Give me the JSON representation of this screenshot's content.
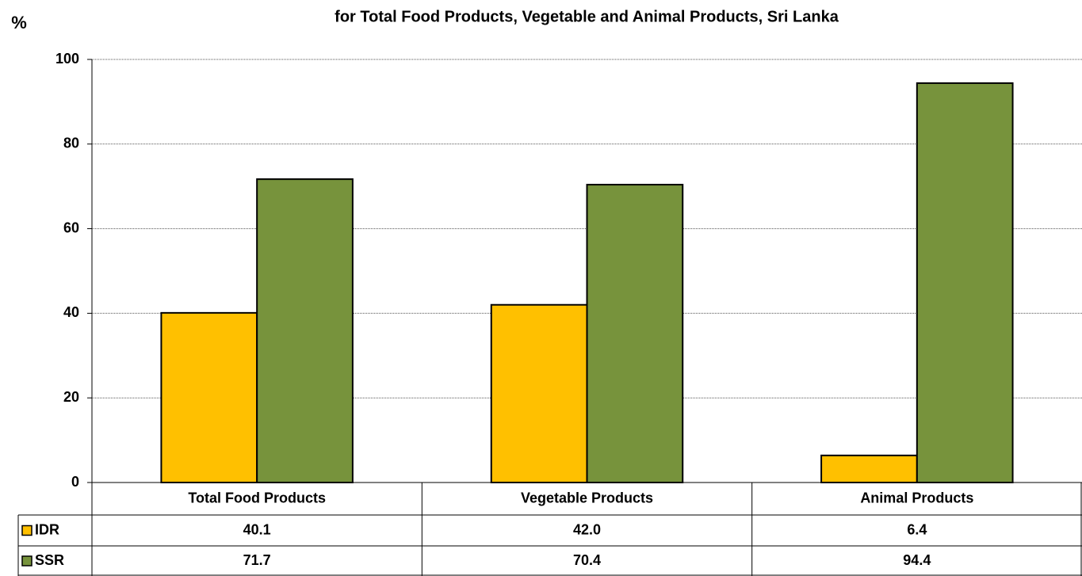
{
  "chart_data": {
    "type": "bar",
    "title": "for Total Food Products, Vegetable and Animal Products, Sri Lanka",
    "y_label": "%",
    "categories": [
      "Total Food Products",
      "Vegetable Products",
      "Animal Products"
    ],
    "series": [
      {
        "name": "IDR",
        "color": "#ffc000",
        "values": [
          40.1,
          42.0,
          6.4
        ],
        "value_labels": [
          "40.1",
          "42.0",
          "6.4"
        ]
      },
      {
        "name": "SSR",
        "color": "#77933c",
        "values": [
          71.7,
          70.4,
          94.4
        ],
        "value_labels": [
          "71.7",
          "70.4",
          "94.4"
        ]
      }
    ],
    "ylim": [
      0,
      100
    ],
    "yticks": [
      0,
      20,
      40,
      60,
      80,
      100
    ],
    "grid": true
  }
}
